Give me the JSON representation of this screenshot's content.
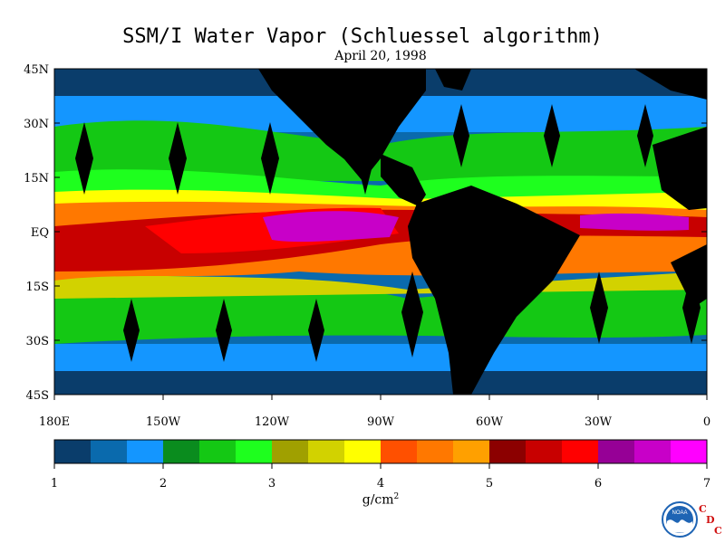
{
  "title": "SSM/I Water Vapor (Schluessel algorithm)",
  "date": "April 20, 1998",
  "map": {
    "lat_labels": [
      "45N",
      "30N",
      "15N",
      "EQ",
      "15S",
      "30S",
      "45S"
    ],
    "lon_labels": [
      "180E",
      "150W",
      "120W",
      "90W",
      "60W",
      "30W",
      "0"
    ],
    "land_color": "#000000"
  },
  "colorbar": {
    "colors": [
      "#0a3d6b",
      "#0a6aad",
      "#1496ff",
      "#0a8c1e",
      "#14c814",
      "#1eff1e",
      "#a0a000",
      "#d2d200",
      "#ffff00",
      "#ff5000",
      "#ff7800",
      "#ffa000",
      "#8c0000",
      "#c80000",
      "#ff0000",
      "#960096",
      "#c800c8",
      "#ff00ff"
    ],
    "tick_values": [
      "1",
      "2",
      "3",
      "4",
      "5",
      "6",
      "7"
    ],
    "unit_label": "g/cm",
    "unit_sup": "2"
  },
  "logo": {
    "noaa_text": "NOAA",
    "cdc_letters": [
      "C",
      "D",
      "C"
    ]
  }
}
